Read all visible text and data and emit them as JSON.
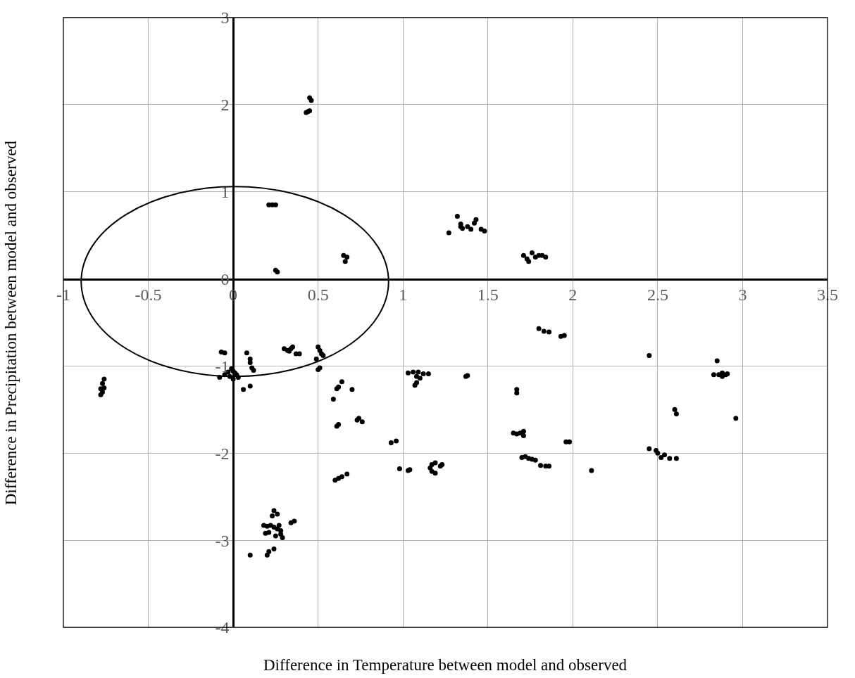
{
  "chart_data": {
    "type": "scatter",
    "xlabel": "Difference in Temperature between model and observed",
    "ylabel": "Difference in Precipitation between model and observed",
    "xlim": [
      -1,
      3.5
    ],
    "xticks": [
      -1,
      -0.5,
      0,
      0.5,
      1,
      1.5,
      2,
      2.5,
      3,
      3.5
    ],
    "ylim": [
      -4,
      3
    ],
    "yticks": [
      -4,
      -3,
      -2,
      -1,
      0,
      1,
      2,
      3
    ],
    "grid": true,
    "marker": "circle",
    "legend": false,
    "series": [
      {
        "color": "#000000",
        "x": [
          0.45,
          0.46,
          0.44,
          0.43,
          0.45,
          0.21,
          0.23,
          0.25,
          0.25,
          0.26,
          0.65,
          0.67,
          0.66,
          1.27,
          1.32,
          1.34,
          1.35,
          1.34,
          1.38,
          1.4,
          1.42,
          1.43,
          1.46,
          1.48,
          1.71,
          1.73,
          1.74,
          1.76,
          1.78,
          1.8,
          1.82,
          1.84,
          1.8,
          1.83,
          1.86,
          1.93,
          1.95,
          2.45,
          2.85,
          2.83,
          2.86,
          2.88,
          2.9,
          2.91,
          2.88,
          2.6,
          2.61,
          2.96,
          2.45,
          2.49,
          2.5,
          2.52,
          2.54,
          2.57,
          2.61,
          2.11,
          1.96,
          1.98,
          1.67,
          1.67,
          1.65,
          1.67,
          1.69,
          1.71,
          1.71,
          1.7,
          1.72,
          1.74,
          1.76,
          1.78,
          1.81,
          1.84,
          1.86,
          1.03,
          1.06,
          1.09,
          1.08,
          1.1,
          1.12,
          1.15,
          1.07,
          1.08,
          1.37,
          1.38,
          0.93,
          0.96,
          0.98,
          1.03,
          1.04,
          1.16,
          1.17,
          1.19,
          1.17,
          1.19,
          1.22,
          1.23,
          0.6,
          0.62,
          0.64,
          0.67,
          0.61,
          0.62,
          0.64,
          0.7,
          0.59,
          0.61,
          0.62,
          0.73,
          0.74,
          0.76,
          0.5,
          0.51,
          0.52,
          0.53,
          0.49,
          0.51,
          0.5,
          0.3,
          0.32,
          0.34,
          0.35,
          0.33,
          0.37,
          0.39,
          -0.07,
          -0.05,
          0.08,
          0.1,
          0.1,
          0.11,
          0.12,
          -0.03,
          -0.01,
          0.0,
          0.01,
          0.02,
          -0.02,
          0.03,
          -0.05,
          -0.08,
          0.0,
          0.06,
          0.1,
          -0.77,
          -0.76,
          -0.78,
          -0.77,
          -0.78,
          -0.76,
          0.24,
          0.26,
          0.23,
          0.18,
          0.2,
          0.22,
          0.24,
          0.26,
          0.27,
          0.28,
          0.19,
          0.21,
          0.25,
          0.28,
          0.29,
          0.34,
          0.36,
          0.1,
          0.2,
          0.21,
          0.24
        ],
        "values": [
          2.08,
          2.05,
          1.92,
          1.91,
          1.93,
          0.85,
          0.85,
          0.85,
          0.1,
          0.08,
          0.27,
          0.25,
          0.2,
          0.53,
          0.72,
          0.63,
          0.58,
          0.6,
          0.6,
          0.57,
          0.64,
          0.68,
          0.57,
          0.55,
          0.27,
          0.23,
          0.2,
          0.3,
          0.25,
          0.27,
          0.27,
          0.25,
          -0.57,
          -0.6,
          -0.61,
          -0.66,
          -0.65,
          -0.88,
          -0.94,
          -1.1,
          -1.1,
          -1.08,
          -1.1,
          -1.09,
          -1.12,
          -1.5,
          -1.55,
          -1.6,
          -1.95,
          -1.97,
          -2.0,
          -2.05,
          -2.02,
          -2.06,
          -2.06,
          -2.2,
          -1.87,
          -1.87,
          -1.27,
          -1.31,
          -1.77,
          -1.78,
          -1.77,
          -1.75,
          -1.8,
          -2.05,
          -2.04,
          -2.06,
          -2.07,
          -2.08,
          -2.14,
          -2.15,
          -2.15,
          -1.08,
          -1.07,
          -1.07,
          -1.12,
          -1.14,
          -1.09,
          -1.09,
          -1.22,
          -1.19,
          -1.12,
          -1.11,
          -1.88,
          -1.86,
          -2.18,
          -2.2,
          -2.19,
          -2.17,
          -2.21,
          -2.23,
          -2.13,
          -2.11,
          -2.15,
          -2.13,
          -2.31,
          -2.29,
          -2.27,
          -2.24,
          -1.26,
          -1.24,
          -1.18,
          -1.27,
          -1.38,
          -1.69,
          -1.67,
          -1.62,
          -1.6,
          -1.64,
          -0.78,
          -0.82,
          -0.86,
          -0.88,
          -0.92,
          -1.02,
          -1.04,
          -0.8,
          -0.82,
          -0.8,
          -0.78,
          -0.83,
          -0.86,
          -0.86,
          -0.84,
          -0.85,
          -0.85,
          -0.92,
          -0.96,
          -1.02,
          -1.05,
          -1.07,
          -1.03,
          -1.06,
          -1.08,
          -1.1,
          -1.12,
          -1.13,
          -1.1,
          -1.13,
          -1.15,
          -1.27,
          -1.23,
          -1.2,
          -1.15,
          -1.26,
          -1.3,
          -1.33,
          -1.25,
          -2.66,
          -2.7,
          -2.72,
          -2.83,
          -2.84,
          -2.83,
          -2.85,
          -2.87,
          -2.83,
          -2.89,
          -2.92,
          -2.91,
          -2.95,
          -2.93,
          -2.97,
          -2.8,
          -2.78,
          -3.17,
          -3.17,
          -3.13,
          -3.1
        ]
      }
    ]
  }
}
